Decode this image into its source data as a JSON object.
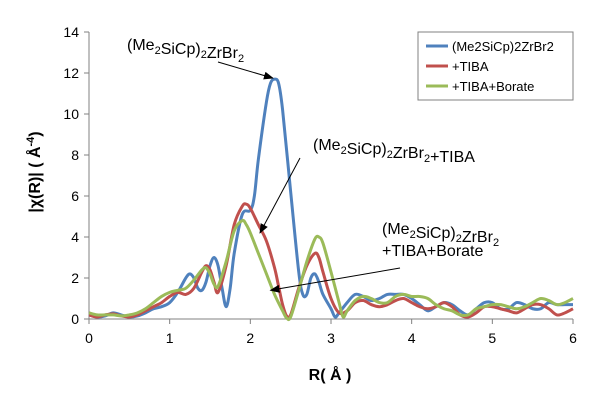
{
  "chart_data": {
    "type": "line",
    "xlabel": "R( Å )",
    "ylabel": "|χ(R)| ( Å",
    "ylabel_sup": "-4",
    "ylabel_close": ")",
    "xlim": [
      0,
      6
    ],
    "ylim": [
      0,
      14
    ],
    "x_ticks": [
      "0",
      "1",
      "2",
      "3",
      "4",
      "5",
      "6"
    ],
    "y_ticks": [
      "0",
      "2",
      "4",
      "6",
      "8",
      "10",
      "12",
      "14"
    ],
    "grid": false,
    "legend_position": "top-right",
    "series": [
      {
        "name": "(Me2SiCp)2ZrBr2",
        "color": "#4F81BD",
        "points": [
          [
            0,
            0.2
          ],
          [
            0.1,
            0.1
          ],
          [
            0.2,
            0.15
          ],
          [
            0.3,
            0.3
          ],
          [
            0.4,
            0.2
          ],
          [
            0.5,
            0.1
          ],
          [
            0.6,
            0.15
          ],
          [
            0.7,
            0.3
          ],
          [
            0.8,
            0.5
          ],
          [
            0.9,
            0.6
          ],
          [
            1.0,
            0.8
          ],
          [
            1.1,
            1.3
          ],
          [
            1.2,
            2.0
          ],
          [
            1.25,
            2.2
          ],
          [
            1.3,
            2.0
          ],
          [
            1.35,
            1.5
          ],
          [
            1.4,
            1.4
          ],
          [
            1.45,
            1.8
          ],
          [
            1.5,
            2.6
          ],
          [
            1.55,
            3.0
          ],
          [
            1.6,
            2.6
          ],
          [
            1.65,
            1.5
          ],
          [
            1.7,
            0.6
          ],
          [
            1.75,
            1.5
          ],
          [
            1.8,
            3.2
          ],
          [
            1.9,
            5.1
          ],
          [
            2.0,
            5.3
          ],
          [
            2.05,
            6.0
          ],
          [
            2.1,
            7.8
          ],
          [
            2.2,
            10.6
          ],
          [
            2.25,
            11.5
          ],
          [
            2.3,
            11.7
          ],
          [
            2.35,
            11.5
          ],
          [
            2.4,
            10.2
          ],
          [
            2.5,
            6.2
          ],
          [
            2.6,
            2.3
          ],
          [
            2.65,
            1.2
          ],
          [
            2.7,
            1.2
          ],
          [
            2.75,
            2.0
          ],
          [
            2.8,
            2.2
          ],
          [
            2.85,
            1.8
          ],
          [
            2.9,
            1.2
          ],
          [
            3.0,
            0.5
          ],
          [
            3.05,
            0.1
          ],
          [
            3.1,
            0.3
          ],
          [
            3.2,
            0.8
          ],
          [
            3.3,
            1.2
          ],
          [
            3.4,
            1.1
          ],
          [
            3.5,
            0.9
          ],
          [
            3.6,
            1.0
          ],
          [
            3.7,
            1.2
          ],
          [
            3.8,
            1.2
          ],
          [
            3.9,
            1.2
          ],
          [
            4.0,
            1.0
          ],
          [
            4.1,
            0.7
          ],
          [
            4.2,
            0.4
          ],
          [
            4.3,
            0.6
          ],
          [
            4.4,
            0.8
          ],
          [
            4.5,
            0.7
          ],
          [
            4.6,
            0.4
          ],
          [
            4.7,
            0.2
          ],
          [
            4.8,
            0.5
          ],
          [
            4.9,
            0.8
          ],
          [
            5.0,
            0.8
          ],
          [
            5.1,
            0.5
          ],
          [
            5.2,
            0.5
          ],
          [
            5.3,
            0.8
          ],
          [
            5.4,
            0.7
          ],
          [
            5.5,
            0.5
          ],
          [
            5.6,
            0.5
          ],
          [
            5.7,
            0.8
          ],
          [
            5.8,
            0.7
          ],
          [
            5.9,
            0.7
          ],
          [
            6.0,
            0.7
          ]
        ]
      },
      {
        "name": "+TIBA",
        "color": "#C0504D",
        "points": [
          [
            0,
            0.2
          ],
          [
            0.1,
            0.1
          ],
          [
            0.2,
            0.2
          ],
          [
            0.3,
            0.25
          ],
          [
            0.4,
            0.15
          ],
          [
            0.5,
            0.1
          ],
          [
            0.6,
            0.2
          ],
          [
            0.7,
            0.4
          ],
          [
            0.8,
            0.6
          ],
          [
            0.9,
            0.8
          ],
          [
            1.0,
            1.1
          ],
          [
            1.1,
            1.3
          ],
          [
            1.2,
            1.2
          ],
          [
            1.3,
            1.5
          ],
          [
            1.4,
            2.3
          ],
          [
            1.45,
            2.6
          ],
          [
            1.5,
            2.4
          ],
          [
            1.55,
            1.8
          ],
          [
            1.6,
            1.3
          ],
          [
            1.7,
            2.6
          ],
          [
            1.8,
            4.6
          ],
          [
            1.9,
            5.5
          ],
          [
            1.95,
            5.6
          ],
          [
            2.0,
            5.4
          ],
          [
            2.1,
            4.6
          ],
          [
            2.2,
            3.8
          ],
          [
            2.3,
            2.5
          ],
          [
            2.35,
            1.6
          ],
          [
            2.4,
            0.7
          ],
          [
            2.45,
            0.15
          ],
          [
            2.5,
            0.2
          ],
          [
            2.6,
            1.5
          ],
          [
            2.7,
            2.6
          ],
          [
            2.8,
            3.2
          ],
          [
            2.85,
            3.0
          ],
          [
            2.9,
            2.3
          ],
          [
            3.0,
            1.0
          ],
          [
            3.1,
            0.3
          ],
          [
            3.2,
            0.4
          ],
          [
            3.3,
            0.8
          ],
          [
            3.4,
            0.9
          ],
          [
            3.5,
            0.7
          ],
          [
            3.6,
            0.6
          ],
          [
            3.7,
            0.7
          ],
          [
            3.8,
            0.9
          ],
          [
            3.9,
            1.0
          ],
          [
            4.0,
            0.8
          ],
          [
            4.1,
            0.6
          ],
          [
            4.2,
            0.5
          ],
          [
            4.3,
            0.6
          ],
          [
            4.4,
            0.8
          ],
          [
            4.5,
            0.6
          ],
          [
            4.6,
            0.2
          ],
          [
            4.7,
            0.1
          ],
          [
            4.8,
            0.3
          ],
          [
            4.9,
            0.6
          ],
          [
            5.0,
            0.6
          ],
          [
            5.1,
            0.5
          ],
          [
            5.2,
            0.4
          ],
          [
            5.3,
            0.3
          ],
          [
            5.4,
            0.5
          ],
          [
            5.5,
            0.7
          ],
          [
            5.6,
            0.7
          ],
          [
            5.7,
            0.5
          ],
          [
            5.8,
            0.2
          ],
          [
            5.9,
            0.3
          ],
          [
            6.0,
            0.5
          ]
        ]
      },
      {
        "name": "+TIBA+Borate",
        "color": "#9BBB59",
        "points": [
          [
            0,
            0.3
          ],
          [
            0.1,
            0.2
          ],
          [
            0.2,
            0.2
          ],
          [
            0.3,
            0.2
          ],
          [
            0.4,
            0.15
          ],
          [
            0.5,
            0.2
          ],
          [
            0.6,
            0.3
          ],
          [
            0.7,
            0.5
          ],
          [
            0.8,
            0.8
          ],
          [
            0.9,
            1.1
          ],
          [
            1.0,
            1.3
          ],
          [
            1.1,
            1.4
          ],
          [
            1.2,
            1.5
          ],
          [
            1.3,
            1.9
          ],
          [
            1.4,
            2.4
          ],
          [
            1.45,
            2.5
          ],
          [
            1.5,
            2.2
          ],
          [
            1.55,
            1.7
          ],
          [
            1.6,
            1.6
          ],
          [
            1.7,
            2.8
          ],
          [
            1.8,
            4.3
          ],
          [
            1.9,
            4.8
          ],
          [
            1.95,
            4.6
          ],
          [
            2.0,
            4.2
          ],
          [
            2.1,
            3.2
          ],
          [
            2.2,
            2.2
          ],
          [
            2.3,
            1.2
          ],
          [
            2.4,
            0.4
          ],
          [
            2.45,
            0.05
          ],
          [
            2.5,
            0.1
          ],
          [
            2.6,
            1.4
          ],
          [
            2.7,
            2.8
          ],
          [
            2.8,
            3.9
          ],
          [
            2.85,
            4.0
          ],
          [
            2.9,
            3.7
          ],
          [
            3.0,
            2.3
          ],
          [
            3.1,
            0.8
          ],
          [
            3.15,
            0.1
          ],
          [
            3.2,
            0.4
          ],
          [
            3.3,
            0.9
          ],
          [
            3.4,
            1.1
          ],
          [
            3.5,
            1.0
          ],
          [
            3.6,
            0.8
          ],
          [
            3.7,
            0.8
          ],
          [
            3.8,
            1.1
          ],
          [
            3.9,
            1.2
          ],
          [
            4.0,
            1.1
          ],
          [
            4.1,
            1.1
          ],
          [
            4.2,
            1.0
          ],
          [
            4.3,
            0.7
          ],
          [
            4.4,
            0.5
          ],
          [
            4.5,
            0.4
          ],
          [
            4.6,
            0.2
          ],
          [
            4.7,
            0.2
          ],
          [
            4.8,
            0.5
          ],
          [
            4.9,
            0.6
          ],
          [
            5.0,
            0.7
          ],
          [
            5.1,
            0.7
          ],
          [
            5.2,
            0.6
          ],
          [
            5.3,
            0.5
          ],
          [
            5.4,
            0.6
          ],
          [
            5.5,
            0.8
          ],
          [
            5.6,
            1.0
          ],
          [
            5.7,
            0.9
          ],
          [
            5.8,
            0.7
          ],
          [
            5.9,
            0.8
          ],
          [
            6.0,
            1.0
          ]
        ]
      }
    ],
    "annotations": [
      {
        "lines": [
          [
            "(Me",
            ""
          ],
          [
            "2",
            "sub"
          ],
          [
            "SiCp)",
            ""
          ],
          [
            "2",
            "sub"
          ],
          [
            "ZrBr",
            ""
          ],
          [
            "2",
            "sub"
          ]
        ],
        "arrow_to": [
          2.28,
          11.75
        ]
      },
      {
        "lines": [
          [
            "(Me",
            ""
          ],
          [
            "2",
            "sub"
          ],
          [
            "SiCp)",
            ""
          ],
          [
            "2",
            "sub"
          ],
          [
            "ZrBr",
            ""
          ],
          [
            "2",
            "sub"
          ],
          [
            "+TIBA",
            ""
          ]
        ],
        "arrow_to": [
          2.12,
          4.2
        ]
      },
      {
        "lines": [
          [
            "(Me",
            ""
          ],
          [
            "2",
            "sub"
          ],
          [
            "SiCp)",
            ""
          ],
          [
            "2",
            "sub"
          ],
          [
            "ZrBr",
            ""
          ],
          [
            "2",
            "sub"
          ]
        ],
        "second_line": "+TIBA+Borate",
        "arrow_to": [
          2.25,
          1.4
        ]
      }
    ]
  }
}
